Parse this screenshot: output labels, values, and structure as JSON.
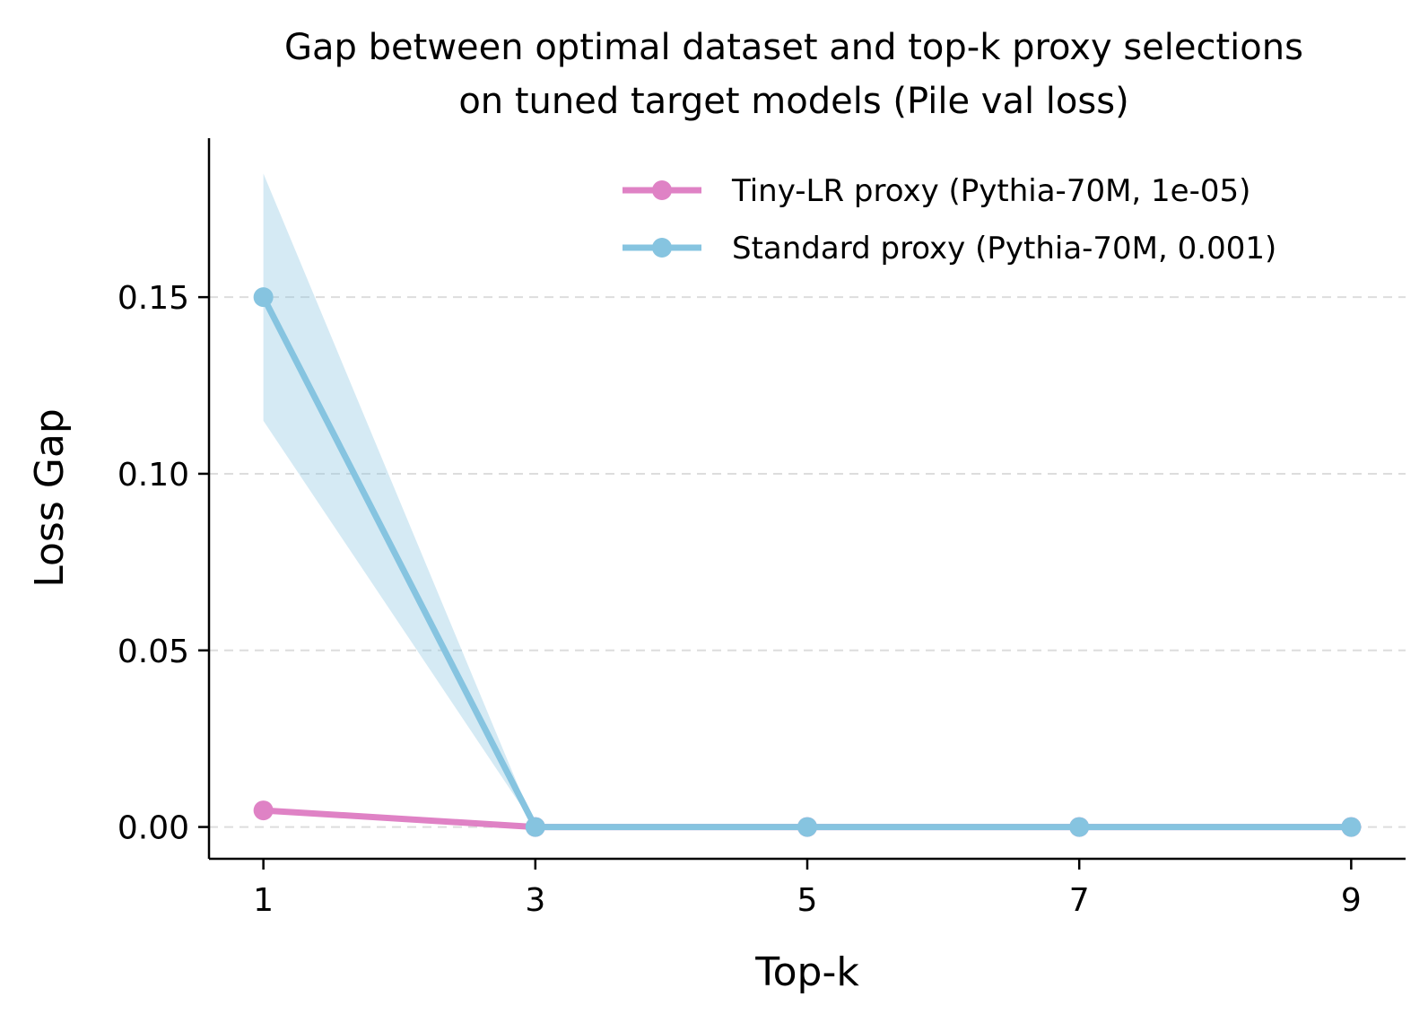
{
  "chart_data": {
    "type": "line",
    "title": "Gap between optimal dataset and top-k proxy selections on tuned target models (Pile val loss)",
    "title_lines": [
      "Gap between optimal dataset and top-k proxy selections",
      "on tuned target models (Pile val loss)"
    ],
    "xlabel": "Top-k",
    "ylabel": "Loss Gap",
    "x": [
      1,
      3,
      5,
      7,
      9
    ],
    "x_ticks": [
      "1",
      "3",
      "5",
      "7",
      "9"
    ],
    "y_ticks": [
      "0.00",
      "0.05",
      "0.10",
      "0.15"
    ],
    "y_tick_values": [
      0.0,
      0.05,
      0.1,
      0.15
    ],
    "xlim": [
      0.6,
      9.4
    ],
    "ylim": [
      -0.009,
      0.195
    ],
    "grid": "horizontal dashed",
    "legend_position": "top-right",
    "series": [
      {
        "name": "Tiny-LR proxy (Pythia-70M, 1e-05)",
        "color": "#df82c5",
        "values": [
          0.0047,
          0.0,
          0.0,
          0.0,
          0.0
        ],
        "band_lower": null,
        "band_upper": null
      },
      {
        "name": "Standard proxy (Pythia-70M, 0.001)",
        "color": "#86c4e0",
        "values": [
          0.15,
          0.0,
          0.0,
          0.0,
          0.0
        ],
        "band_lower": [
          0.115,
          0.0,
          0.0,
          0.0,
          0.0
        ],
        "band_upper": [
          0.185,
          0.0,
          0.0,
          0.0,
          0.0
        ]
      }
    ]
  }
}
